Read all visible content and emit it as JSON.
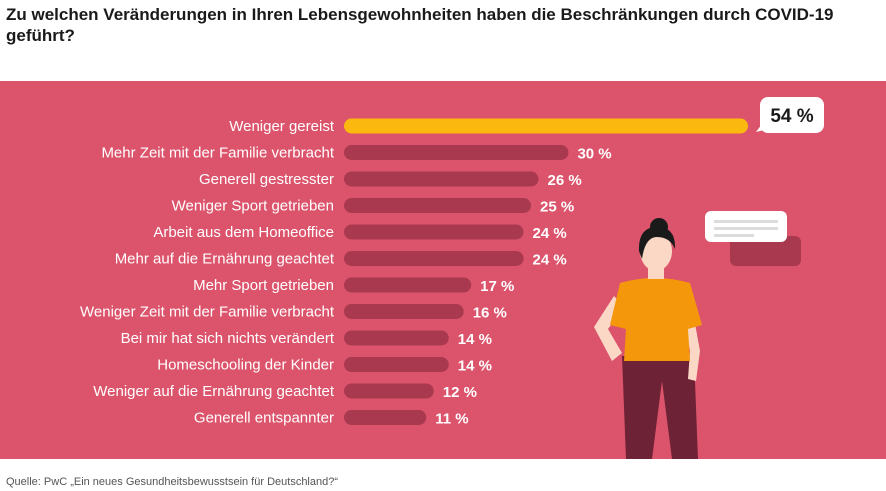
{
  "title": "Zu welchen Veränderungen in Ihren Lebensgewohnheiten haben die Beschränkungen durch COVID-19 geführt?",
  "source": "Quelle: PwC „Ein neues Gesundheitsbewusstsein für Deutschland?“",
  "chart_data": {
    "type": "bar",
    "orientation": "horizontal",
    "unit": "%",
    "categories": [
      "Weniger gereist",
      "Mehr Zeit mit der Familie verbracht",
      "Generell gestresster",
      "Weniger Sport getrieben",
      "Arbeit aus dem Homeoffice",
      "Mehr auf die Ernährung geachtet",
      "Mehr Sport getrieben",
      "Weniger Zeit mit der Familie verbracht",
      "Bei mir hat sich nichts verändert",
      "Homeschooling der Kinder",
      "Weniger auf die Ernährung geachtet",
      "Generell entspannter"
    ],
    "values": [
      54,
      30,
      26,
      25,
      24,
      24,
      17,
      16,
      14,
      14,
      12,
      11
    ],
    "labels": [
      "54 %",
      "30 %",
      "26 %",
      "25 %",
      "24 %",
      "24 %",
      "17 %",
      "16 %",
      "14 %",
      "14 %",
      "12 %",
      "11 %"
    ],
    "highlight_index": 0,
    "colors": {
      "panel": "#dc546c",
      "bar": "#a8394f",
      "highlight": "#fbb80e",
      "text": "#ffffff"
    }
  }
}
